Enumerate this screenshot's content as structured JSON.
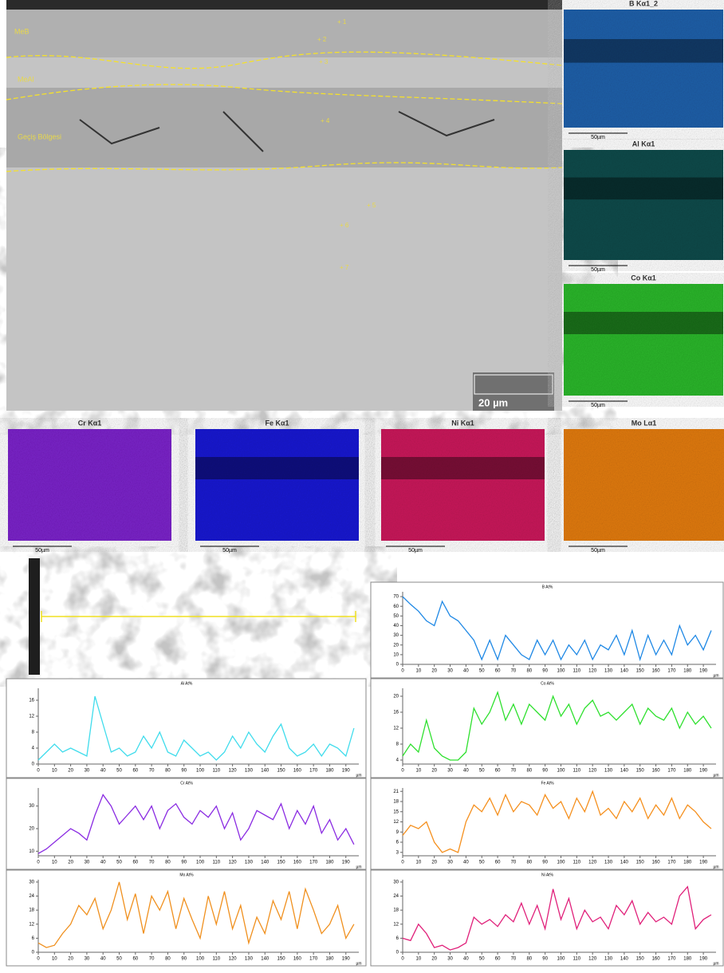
{
  "micrograph": {
    "labels": [
      "MeB",
      "MeAl",
      "Geçiş Bölgesi"
    ],
    "points": [
      "+ 1",
      "+ 2",
      "+ 3",
      "+ 4",
      "+ 5",
      "+ 6",
      "+ 7"
    ],
    "scale": "20 µm"
  },
  "maps": [
    {
      "title": "B Kα1_2",
      "scale": "50µm",
      "color": "#1f5fa8"
    },
    {
      "title": "Al Kα1",
      "scale": "50µm",
      "color": "#0b4a4a"
    },
    {
      "title": "Co Kα1",
      "scale": "50µm",
      "color": "#2bb52b"
    },
    {
      "title": "Cr Kα1",
      "scale": "50µm",
      "color": "#7a22c8"
    },
    {
      "title": "Fe Kα1",
      "scale": "50µm",
      "color": "#1a1ad0"
    },
    {
      "title": "Ni Kα1",
      "scale": "50µm",
      "color": "#c8185a"
    },
    {
      "title": "Mo Lα1",
      "scale": "50µm",
      "color": "#e07a10"
    }
  ],
  "chart_data": [
    {
      "type": "line",
      "title": "B At%",
      "x_label": "µm",
      "color": "#1e88e5",
      "xlim": [
        0,
        198
      ],
      "ylim": [
        0,
        75
      ],
      "xticks": [
        0,
        10,
        20,
        30,
        40,
        50,
        60,
        70,
        80,
        90,
        100,
        110,
        120,
        130,
        140,
        150,
        160,
        170,
        180,
        190
      ],
      "yticks": [
        0,
        10,
        20,
        30,
        40,
        50,
        60,
        70
      ],
      "x": [
        0,
        5,
        10,
        15,
        20,
        25,
        30,
        35,
        40,
        45,
        50,
        55,
        60,
        65,
        70,
        75,
        80,
        85,
        90,
        95,
        100,
        105,
        110,
        115,
        120,
        125,
        130,
        135,
        140,
        145,
        150,
        155,
        160,
        165,
        170,
        175,
        180,
        185,
        190,
        195
      ],
      "values": [
        70,
        62,
        55,
        45,
        40,
        65,
        50,
        45,
        35,
        25,
        5,
        25,
        5,
        30,
        20,
        10,
        5,
        25,
        10,
        25,
        5,
        20,
        10,
        25,
        5,
        20,
        15,
        30,
        10,
        35,
        5,
        30,
        10,
        25,
        10,
        40,
        20,
        30,
        15,
        35
      ]
    },
    {
      "type": "line",
      "title": "Al At%",
      "x_label": "µm",
      "color": "#3fdcec",
      "xlim": [
        0,
        198
      ],
      "ylim": [
        0,
        19
      ],
      "xticks": [
        0,
        10,
        20,
        30,
        40,
        50,
        60,
        70,
        80,
        90,
        100,
        110,
        120,
        130,
        140,
        150,
        160,
        170,
        180,
        190
      ],
      "yticks": [
        0,
        4,
        8,
        12,
        16
      ],
      "x": [
        0,
        5,
        10,
        15,
        20,
        25,
        30,
        35,
        40,
        45,
        50,
        55,
        60,
        65,
        70,
        75,
        80,
        85,
        90,
        95,
        100,
        105,
        110,
        115,
        120,
        125,
        130,
        135,
        140,
        145,
        150,
        155,
        160,
        165,
        170,
        175,
        180,
        185,
        190,
        195
      ],
      "values": [
        1,
        3,
        5,
        3,
        4,
        3,
        2,
        17,
        10,
        3,
        4,
        2,
        3,
        7,
        4,
        8,
        3,
        2,
        6,
        4,
        2,
        3,
        1,
        3,
        7,
        4,
        8,
        5,
        3,
        7,
        10,
        4,
        2,
        3,
        5,
        2,
        5,
        4,
        2,
        9
      ]
    },
    {
      "type": "line",
      "title": "Co At%",
      "x_label": "µm",
      "color": "#2ee02e",
      "xlim": [
        0,
        198
      ],
      "ylim": [
        3,
        22
      ],
      "xticks": [
        0,
        10,
        20,
        30,
        40,
        50,
        60,
        70,
        80,
        90,
        100,
        110,
        120,
        130,
        140,
        150,
        160,
        170,
        180,
        190
      ],
      "yticks": [
        4,
        8,
        12,
        16,
        20
      ],
      "x": [
        0,
        5,
        10,
        15,
        20,
        25,
        30,
        35,
        40,
        45,
        50,
        55,
        60,
        65,
        70,
        75,
        80,
        85,
        90,
        95,
        100,
        105,
        110,
        115,
        120,
        125,
        130,
        135,
        140,
        145,
        150,
        155,
        160,
        165,
        170,
        175,
        180,
        185,
        190,
        195
      ],
      "values": [
        5,
        8,
        6,
        14,
        7,
        5,
        4,
        4,
        6,
        17,
        13,
        16,
        21,
        14,
        18,
        13,
        18,
        16,
        14,
        20,
        15,
        18,
        13,
        17,
        19,
        15,
        16,
        14,
        16,
        18,
        13,
        17,
        15,
        14,
        17,
        12,
        16,
        13,
        15,
        12
      ]
    },
    {
      "type": "line",
      "title": "Cr At%",
      "x_label": "µm",
      "color": "#8a2be2",
      "xlim": [
        0,
        198
      ],
      "ylim": [
        8,
        38
      ],
      "xticks": [
        0,
        10,
        20,
        30,
        40,
        50,
        60,
        70,
        80,
        90,
        100,
        110,
        120,
        130,
        140,
        150,
        160,
        170,
        180,
        190
      ],
      "yticks": [
        10,
        20,
        30
      ],
      "x": [
        0,
        5,
        10,
        15,
        20,
        25,
        30,
        35,
        40,
        45,
        50,
        55,
        60,
        65,
        70,
        75,
        80,
        85,
        90,
        95,
        100,
        105,
        110,
        115,
        120,
        125,
        130,
        135,
        140,
        145,
        150,
        155,
        160,
        165,
        170,
        175,
        180,
        185,
        190,
        195
      ],
      "values": [
        9,
        11,
        14,
        17,
        20,
        18,
        15,
        26,
        35,
        30,
        22,
        26,
        30,
        24,
        30,
        20,
        28,
        31,
        25,
        22,
        28,
        25,
        30,
        20,
        27,
        15,
        20,
        28,
        26,
        24,
        31,
        20,
        28,
        22,
        30,
        18,
        24,
        15,
        20,
        13
      ]
    },
    {
      "type": "line",
      "title": "Fe At%",
      "x_label": "µm",
      "color": "#f5901e",
      "xlim": [
        0,
        198
      ],
      "ylim": [
        2,
        22
      ],
      "xticks": [
        0,
        10,
        20,
        30,
        40,
        50,
        60,
        70,
        80,
        90,
        100,
        110,
        120,
        130,
        140,
        150,
        160,
        170,
        180,
        190
      ],
      "yticks": [
        3,
        6,
        9,
        12,
        15,
        18,
        21
      ],
      "x": [
        0,
        5,
        10,
        15,
        20,
        25,
        30,
        35,
        40,
        45,
        50,
        55,
        60,
        65,
        70,
        75,
        80,
        85,
        90,
        95,
        100,
        105,
        110,
        115,
        120,
        125,
        130,
        135,
        140,
        145,
        150,
        155,
        160,
        165,
        170,
        175,
        180,
        185,
        190,
        195
      ],
      "values": [
        8,
        11,
        10,
        12,
        6,
        3,
        4,
        3,
        12,
        17,
        15,
        19,
        14,
        20,
        15,
        18,
        17,
        14,
        20,
        16,
        18,
        13,
        19,
        15,
        21,
        14,
        16,
        13,
        18,
        15,
        19,
        13,
        17,
        14,
        19,
        13,
        17,
        15,
        12,
        10
      ]
    },
    {
      "type": "line",
      "title": "Mo At%",
      "x_label": "µm",
      "color": "#f0901e",
      "xlim": [
        0,
        198
      ],
      "ylim": [
        0,
        31
      ],
      "xticks": [
        0,
        10,
        20,
        30,
        40,
        50,
        60,
        70,
        80,
        90,
        100,
        110,
        120,
        130,
        140,
        150,
        160,
        170,
        180,
        190
      ],
      "yticks": [
        0,
        6,
        12,
        18,
        24,
        30
      ],
      "x": [
        0,
        5,
        10,
        15,
        20,
        25,
        30,
        35,
        40,
        45,
        50,
        55,
        60,
        65,
        70,
        75,
        80,
        85,
        90,
        95,
        100,
        105,
        110,
        115,
        120,
        125,
        130,
        135,
        140,
        145,
        150,
        155,
        160,
        165,
        170,
        175,
        180,
        185,
        190,
        195
      ],
      "values": [
        4,
        2,
        3,
        8,
        12,
        20,
        16,
        23,
        10,
        18,
        30,
        14,
        25,
        8,
        24,
        18,
        26,
        10,
        23,
        14,
        6,
        24,
        12,
        26,
        10,
        20,
        4,
        15,
        8,
        22,
        14,
        26,
        10,
        27,
        18,
        8,
        12,
        20,
        6,
        12
      ]
    },
    {
      "type": "line",
      "title": "Ni At%",
      "x_label": "µm",
      "color": "#e0207a",
      "xlim": [
        0,
        198
      ],
      "ylim": [
        0,
        31
      ],
      "xticks": [
        0,
        10,
        20,
        30,
        40,
        50,
        60,
        70,
        80,
        90,
        100,
        110,
        120,
        130,
        140,
        150,
        160,
        170,
        180,
        190
      ],
      "yticks": [
        0,
        6,
        12,
        18,
        24,
        30
      ],
      "x": [
        0,
        5,
        10,
        15,
        20,
        25,
        30,
        35,
        40,
        45,
        50,
        55,
        60,
        65,
        70,
        75,
        80,
        85,
        90,
        95,
        100,
        105,
        110,
        115,
        120,
        125,
        130,
        135,
        140,
        145,
        150,
        155,
        160,
        165,
        170,
        175,
        180,
        185,
        190,
        195
      ],
      "values": [
        6,
        5,
        12,
        8,
        2,
        3,
        1,
        2,
        4,
        15,
        12,
        14,
        11,
        16,
        13,
        21,
        12,
        20,
        10,
        27,
        14,
        23,
        10,
        18,
        13,
        15,
        10,
        20,
        16,
        22,
        12,
        17,
        13,
        15,
        12,
        24,
        28,
        10,
        14,
        16
      ]
    }
  ]
}
